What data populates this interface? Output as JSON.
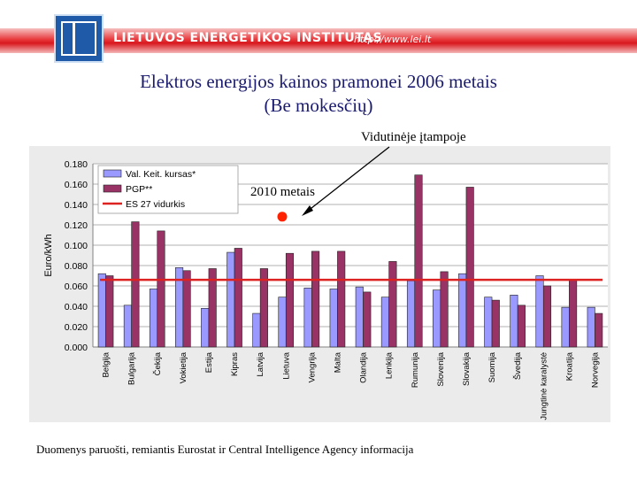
{
  "header": {
    "org_name": "LIETUVOS ENERGETIKOS INSTITUTAS",
    "url": "http://www.lei.lt",
    "brand_color": "#d8181e",
    "logo_color": "#1f5aa8"
  },
  "slide": {
    "title_line1": "Elektros energijos kainos pramonei 2006 metais",
    "title_line2": "(Be mokesčių)",
    "annotation_voltage": "Vidutinėje įtampoje",
    "annotation_year": "2010 metais",
    "source": "Duomenys paruošti, remiantis Eurostat ir Central Intelligence Agency informacija"
  },
  "chart_data": {
    "type": "bar",
    "ylabel": "Euro/kWh",
    "ylim": [
      0,
      0.18
    ],
    "yticks": [
      "0.000",
      "0.020",
      "0.040",
      "0.060",
      "0.080",
      "0.100",
      "0.120",
      "0.140",
      "0.160",
      "0.180"
    ],
    "categories": [
      "Belgija",
      "Bulgarija",
      "Čekija",
      "Vokietija",
      "Estija",
      "Kipras",
      "Latvija",
      "Lietuva",
      "Vengrija",
      "Malta",
      "Olandija",
      "Lenkija",
      "Rumunija",
      "Slovenija",
      "Slovakija",
      "Suomija",
      "Švedija",
      "Jungtinė karalystė",
      "Kroatija",
      "Norvegija"
    ],
    "series": [
      {
        "name": "Val. Keit. kursas*",
        "color": "#9999ff",
        "values": [
          0.072,
          0.041,
          0.057,
          0.078,
          0.038,
          0.093,
          0.033,
          0.049,
          0.058,
          0.057,
          0.059,
          0.049,
          0.065,
          0.056,
          0.072,
          0.049,
          0.051,
          0.07,
          0.039,
          0.039
        ]
      },
      {
        "name": "PGP**",
        "color": "#993366",
        "values": [
          0.07,
          0.123,
          0.114,
          0.075,
          0.077,
          0.097,
          0.077,
          0.092,
          0.094,
          0.094,
          0.054,
          0.084,
          0.169,
          0.074,
          0.157,
          0.046,
          0.041,
          0.06,
          0.066,
          0.033
        ]
      }
    ],
    "reference_line": {
      "name": "ES 27 vidurkis",
      "value": 0.066,
      "color": "#dd2222"
    },
    "highlight_point": {
      "category": "Lietuva",
      "value": 0.128,
      "color": "#ff2200"
    },
    "grid": true,
    "legend_position": "top-left"
  }
}
